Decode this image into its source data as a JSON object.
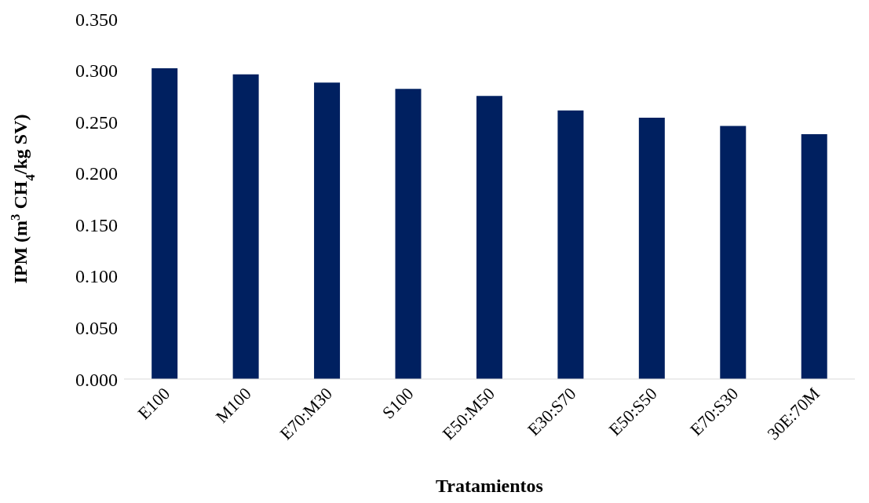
{
  "chart_data": {
    "type": "bar",
    "xlabel": "Tratamientos",
    "ylabel": "IPM (m$^{3}$ CH$_{4}$/kg SV)",
    "categories": [
      "E100",
      "M100",
      "E70:M30",
      "S100",
      "E50:M50",
      "E30:S70",
      "E50:S50",
      "E70:S30",
      "30E:70M"
    ],
    "values": [
      0.302,
      0.296,
      0.288,
      0.282,
      0.275,
      0.261,
      0.254,
      0.246,
      0.238
    ],
    "color": "#002060",
    "ylim": [
      0,
      0.35
    ],
    "yticks": [
      {
        "value": 0,
        "label": "0.000"
      },
      {
        "value": 0.05,
        "label": "0.050"
      },
      {
        "value": 0.1,
        "label": "0.100"
      },
      {
        "value": 0.15,
        "label": "0.150"
      },
      {
        "value": 0.2,
        "label": "0.200"
      },
      {
        "value": 0.25,
        "label": "0.250"
      },
      {
        "value": 0.3,
        "label": "0.300"
      },
      {
        "value": 0.35,
        "label": "0.350"
      }
    ]
  }
}
